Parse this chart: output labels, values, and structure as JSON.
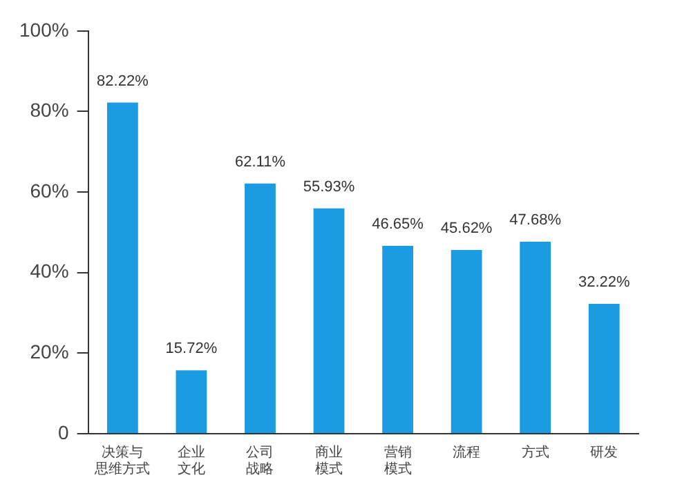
{
  "chart_data": {
    "type": "bar",
    "categories": [
      "决策与思维方式",
      "企业文化",
      "公司战略",
      "商业模式",
      "营销模式",
      "流程",
      "方式",
      "研发"
    ],
    "values": [
      82.22,
      15.72,
      62.11,
      55.93,
      46.65,
      45.62,
      47.68,
      32.22
    ],
    "value_labels": [
      "82.22%",
      "15.72%",
      "62.11%",
      "55.93%",
      "46.65%",
      "45.62%",
      "47.68%",
      "32.22%"
    ],
    "color": "#1a9be2",
    "ylim": [
      0,
      100
    ],
    "yticks": [
      {
        "value": 0,
        "label": "0"
      },
      {
        "value": 20,
        "label": "20%"
      },
      {
        "value": 40,
        "label": "40%"
      },
      {
        "value": 60,
        "label": "60%"
      },
      {
        "value": 80,
        "label": "80%"
      },
      {
        "value": 100,
        "label": "100%"
      }
    ],
    "grid": false,
    "legend": false
  }
}
